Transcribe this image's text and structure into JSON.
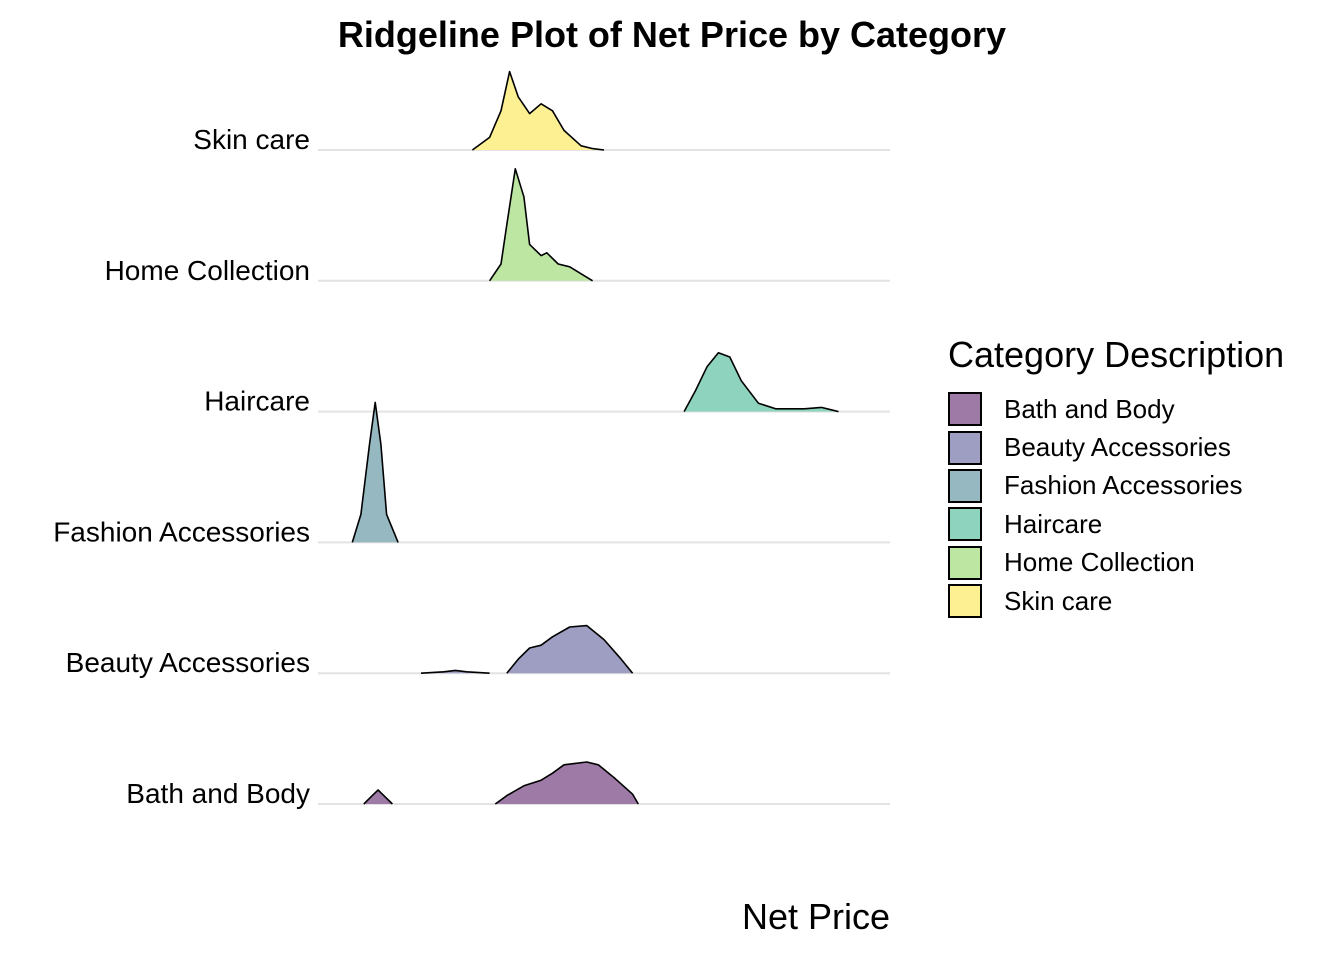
{
  "chart_data": {
    "type": "ridgeline",
    "title": "Ridgeline Plot of Net Price by Category",
    "xlabel": "Net Price",
    "ylabel": "",
    "grid": "horizontal baselines only",
    "x_axis_ticks_shown": false,
    "legend": {
      "title": "Category Description",
      "placement": "right"
    },
    "categories": [
      "Bath and Body",
      "Beauty Accessories",
      "Fashion Accessories",
      "Haircare",
      "Home Collection",
      "Skin care"
    ],
    "series": [
      {
        "name": "Bath and Body",
        "color": "#9E7BA7",
        "density": [
          [
            0.08,
            0
          ],
          [
            0.095,
            0.06
          ],
          [
            0.105,
            0.1
          ],
          [
            0.115,
            0.06
          ],
          [
            0.13,
            0
          ],
          [
            0.135,
            null
          ],
          [
            0.31,
            null
          ],
          [
            0.31,
            0
          ],
          [
            0.33,
            0.06
          ],
          [
            0.36,
            0.13
          ],
          [
            0.39,
            0.17
          ],
          [
            0.41,
            0.22
          ],
          [
            0.43,
            0.28
          ],
          [
            0.47,
            0.3
          ],
          [
            0.49,
            0.28
          ],
          [
            0.52,
            0.18
          ],
          [
            0.55,
            0.07
          ],
          [
            0.56,
            0
          ]
        ]
      },
      {
        "name": "Beauty Accessories",
        "color": "#9D9EC1",
        "density": [
          [
            0.18,
            0
          ],
          [
            0.22,
            0.01
          ],
          [
            0.24,
            0.02
          ],
          [
            0.26,
            0.01
          ],
          [
            0.3,
            0
          ],
          [
            0.305,
            null
          ],
          [
            0.33,
            null
          ],
          [
            0.33,
            0
          ],
          [
            0.35,
            0.1
          ],
          [
            0.37,
            0.18
          ],
          [
            0.39,
            0.2
          ],
          [
            0.41,
            0.26
          ],
          [
            0.44,
            0.33
          ],
          [
            0.47,
            0.34
          ],
          [
            0.5,
            0.24
          ],
          [
            0.53,
            0.1
          ],
          [
            0.55,
            0
          ]
        ]
      },
      {
        "name": "Fashion Accessories",
        "color": "#96B8C1",
        "density": [
          [
            0.06,
            0
          ],
          [
            0.075,
            0.2
          ],
          [
            0.09,
            0.7
          ],
          [
            0.1,
            1.0
          ],
          [
            0.11,
            0.7
          ],
          [
            0.12,
            0.2
          ],
          [
            0.14,
            0
          ]
        ]
      },
      {
        "name": "Haircare",
        "color": "#8ED3BE",
        "density": [
          [
            0.64,
            0
          ],
          [
            0.66,
            0.15
          ],
          [
            0.68,
            0.32
          ],
          [
            0.7,
            0.42
          ],
          [
            0.72,
            0.39
          ],
          [
            0.74,
            0.22
          ],
          [
            0.77,
            0.06
          ],
          [
            0.8,
            0.02
          ],
          [
            0.85,
            0.02
          ],
          [
            0.88,
            0.03
          ],
          [
            0.9,
            0.01
          ],
          [
            0.91,
            0
          ]
        ]
      },
      {
        "name": "Home Collection",
        "color": "#BDE6A3",
        "density": [
          [
            0.3,
            0
          ],
          [
            0.32,
            0.12
          ],
          [
            0.33,
            0.4
          ],
          [
            0.345,
            0.8
          ],
          [
            0.36,
            0.6
          ],
          [
            0.37,
            0.26
          ],
          [
            0.39,
            0.18
          ],
          [
            0.4,
            0.2
          ],
          [
            0.42,
            0.12
          ],
          [
            0.44,
            0.1
          ],
          [
            0.46,
            0.05
          ],
          [
            0.48,
            0
          ]
        ]
      },
      {
        "name": "Skin care",
        "color": "#FCF093",
        "density": [
          [
            0.27,
            0
          ],
          [
            0.3,
            0.09
          ],
          [
            0.32,
            0.28
          ],
          [
            0.335,
            0.56
          ],
          [
            0.35,
            0.38
          ],
          [
            0.37,
            0.26
          ],
          [
            0.39,
            0.33
          ],
          [
            0.41,
            0.28
          ],
          [
            0.43,
            0.14
          ],
          [
            0.46,
            0.03
          ],
          [
            0.48,
            0.01
          ],
          [
            0.5,
            0
          ]
        ]
      }
    ]
  }
}
